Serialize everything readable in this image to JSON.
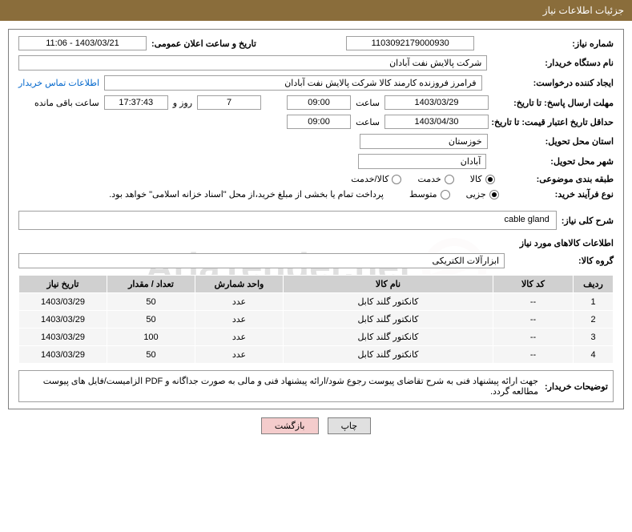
{
  "header": {
    "title": "جزئیات اطلاعات نیاز"
  },
  "fields": {
    "need_number_label": "شماره نیاز:",
    "need_number": "1103092179000930",
    "announce_date_label": "تاریخ و ساعت اعلان عمومی:",
    "announce_date": "1403/03/21 - 11:06",
    "buyer_org_label": "نام دستگاه خریدار:",
    "buyer_org": "شرکت پالایش نفت آبادان",
    "requester_label": "ایجاد کننده درخواست:",
    "requester": "فرامرز فروزنده کارمند کالا شرکت پالایش نفت آبادان",
    "contact_link": "اطلاعات تماس خریدار",
    "deadline_label": "مهلت ارسال پاسخ: تا تاریخ:",
    "deadline_date": "1403/03/29",
    "time_label": "ساعت",
    "deadline_time": "09:00",
    "days_left": "7",
    "days_word": "روز و",
    "hours_left": "17:37:43",
    "hours_word": "ساعت باقی مانده",
    "validity_label": "حداقل تاریخ اعتبار قیمت: تا تاریخ:",
    "validity_date": "1403/04/30",
    "validity_time": "09:00",
    "province_label": "استان محل تحویل:",
    "province": "خوزستان",
    "city_label": "شهر محل تحویل:",
    "city": "آبادان",
    "category_label": "طبقه بندی موضوعی:",
    "cat_goods": "کالا",
    "cat_service": "خدمت",
    "cat_goods_service": "کالا/خدمت",
    "purchase_type_label": "نوع فرآیند خرید:",
    "pt_minor": "جزیی",
    "pt_medium": "متوسط",
    "purchase_note": "پرداخت تمام یا بخشی از مبلغ خرید،از محل \"اسناد خزانه اسلامی\" خواهد بود.",
    "general_desc_label": "شرح کلی نیاز:",
    "general_desc": "cable gland",
    "items_heading": "اطلاعات کالاهای مورد نیاز",
    "group_label": "گروه کالا:",
    "group": "ابزارآلات الکتریکی",
    "buyer_notes_label": "توضیحات خریدار:",
    "buyer_notes": "جهت ارائه پیشنهاد فنی به شرح تقاضای پیوست رجوع شود/ارائه پیشنهاد فنی و مالی به صورت جداگانه و PDF الزامیست/فایل های پیوست مطالعه گردد."
  },
  "table": {
    "headers": {
      "row": "ردیف",
      "code": "کد کالا",
      "name": "نام کالا",
      "unit": "واحد شمارش",
      "qty": "تعداد / مقدار",
      "date": "تاریخ نیاز"
    },
    "rows": [
      {
        "n": "1",
        "code": "--",
        "name": "کانکتور گلند کابل",
        "unit": "عدد",
        "qty": "50",
        "date": "1403/03/29"
      },
      {
        "n": "2",
        "code": "--",
        "name": "کانکتور گلند کابل",
        "unit": "عدد",
        "qty": "50",
        "date": "1403/03/29"
      },
      {
        "n": "3",
        "code": "--",
        "name": "کانکتور گلند کابل",
        "unit": "عدد",
        "qty": "100",
        "date": "1403/03/29"
      },
      {
        "n": "4",
        "code": "--",
        "name": "کانکتور گلند کابل",
        "unit": "عدد",
        "qty": "50",
        "date": "1403/03/29"
      }
    ]
  },
  "buttons": {
    "print": "چاپ",
    "back": "بازگشت"
  },
  "watermark": "AriaTender.net",
  "colors": {
    "header_bg": "#8a6d3b",
    "border": "#808080",
    "th_bg": "#d0d0d0",
    "td_bg": "#f5f5f5",
    "link": "#0066cc",
    "btn_back": "#f4cccc"
  }
}
